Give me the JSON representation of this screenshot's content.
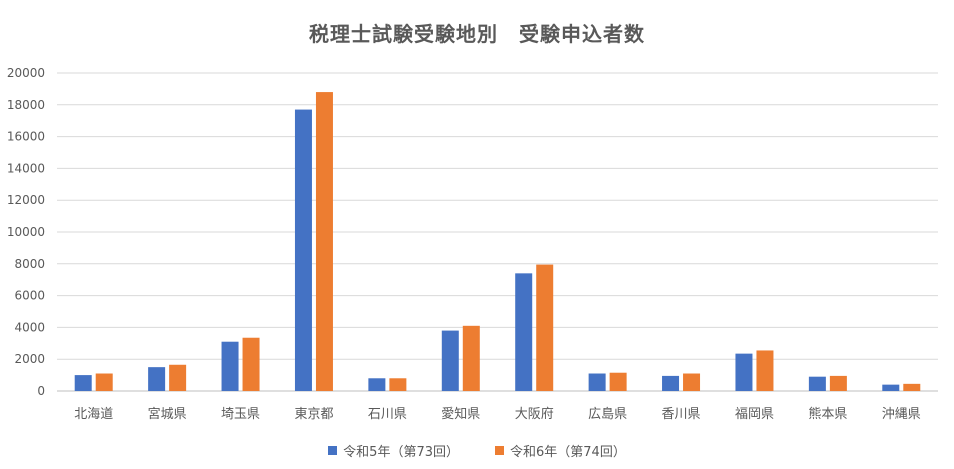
{
  "chart_data": {
    "type": "bar",
    "title": "税理士試験受験地別　受験申込者数",
    "categories": [
      "北海道",
      "宮城県",
      "埼玉県",
      "東京都",
      "石川県",
      "愛知県",
      "大阪府",
      "広島県",
      "香川県",
      "福岡県",
      "熊本県",
      "沖縄県"
    ],
    "series": [
      {
        "name": "令和5年（第73回）",
        "color": "#4472C4",
        "values": [
          1000,
          1500,
          3100,
          17700,
          800,
          3800,
          7400,
          1100,
          950,
          2350,
          900,
          400
        ]
      },
      {
        "name": "令和6年（第74回）",
        "color": "#ED7D31",
        "values": [
          1100,
          1650,
          3350,
          18800,
          800,
          4100,
          7950,
          1150,
          1100,
          2550,
          950,
          450
        ]
      }
    ],
    "ylim": [
      0,
      20000
    ],
    "yticks": [
      0,
      2000,
      4000,
      6000,
      8000,
      10000,
      12000,
      14000,
      16000,
      18000,
      20000
    ],
    "grid": true,
    "legend_position": "bottom"
  }
}
